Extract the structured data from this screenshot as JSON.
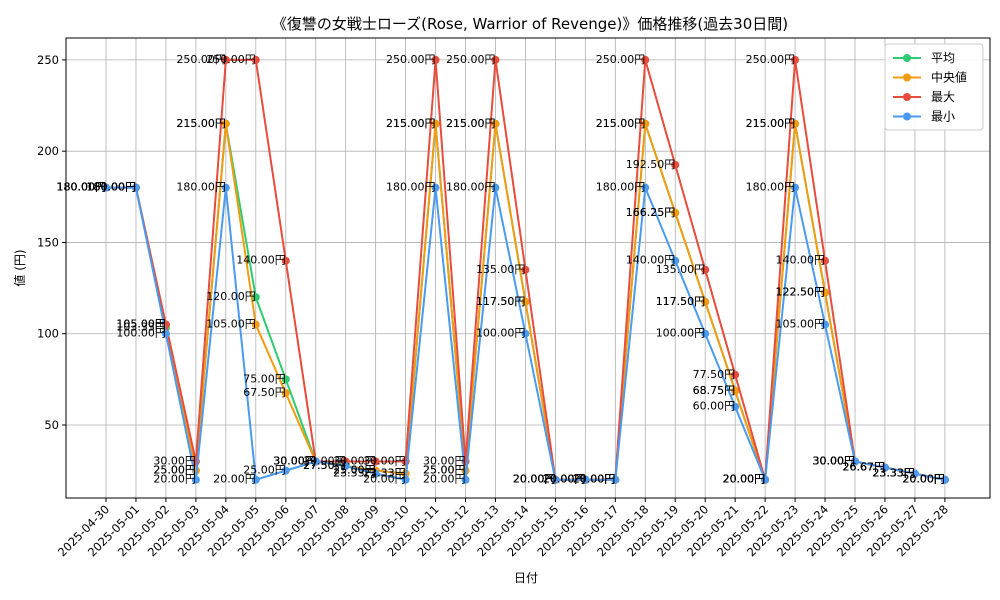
{
  "chart_data": {
    "type": "line",
    "title": "《復讐の女戦士ローズ(Rose, Warrior of Revenge)》価格推移(過去30日間)",
    "xlabel": "日付",
    "ylabel": "値 (円)",
    "ylim": [
      10,
      262
    ],
    "yticks": [
      50,
      100,
      150,
      200,
      250
    ],
    "grid": true,
    "legend_position": "top-right",
    "value_suffix": "円",
    "categories": [
      "2025-04-30",
      "2025-05-01",
      "2025-05-02",
      "2025-05-03",
      "2025-05-04",
      "2025-05-05",
      "2025-05-06",
      "2025-05-07",
      "2025-05-08",
      "2025-05-09",
      "2025-05-10",
      "2025-05-11",
      "2025-05-12",
      "2025-05-13",
      "2025-05-14",
      "2025-05-15",
      "2025-05-16",
      "2025-05-17",
      "2025-05-18",
      "2025-05-19",
      "2025-05-20",
      "2025-05-21",
      "2025-05-22",
      "2025-05-23",
      "2025-05-24",
      "2025-05-25",
      "2025-05-26",
      "2025-05-27",
      "2025-05-28"
    ],
    "series": [
      {
        "name": "平均",
        "color": "#2ecc71",
        "values": [
          180.0,
          180.0,
          103.33,
          25.0,
          215.0,
          120.0,
          75.0,
          30.0,
          27.5,
          25.0,
          23.33,
          215.0,
          25.0,
          215.0,
          117.5,
          20.0,
          20.0,
          20.0,
          215.0,
          166.25,
          117.5,
          68.75,
          20.0,
          215.0,
          122.5,
          30.0,
          26.67,
          23.33,
          20.0
        ]
      },
      {
        "name": "中央値",
        "color": "#f39c12",
        "values": [
          180.0,
          180.0,
          105.0,
          25.0,
          215.0,
          105.0,
          67.5,
          30.0,
          27.5,
          25.0,
          23.33,
          215.0,
          25.0,
          215.0,
          117.5,
          20.0,
          20.0,
          20.0,
          215.0,
          166.25,
          117.5,
          68.75,
          20.0,
          215.0,
          122.5,
          30.0,
          26.67,
          23.33,
          20.0
        ]
      },
      {
        "name": "最大",
        "color": "#e74c3c",
        "values": [
          180.0,
          180.0,
          105.0,
          30.0,
          250.0,
          250.0,
          140.0,
          30.0,
          30.0,
          30.0,
          30.0,
          250.0,
          30.0,
          250.0,
          135.0,
          20.0,
          20.0,
          20.0,
          250.0,
          192.5,
          135.0,
          77.5,
          20.0,
          250.0,
          140.0,
          30.0,
          26.67,
          23.33,
          20.0
        ]
      },
      {
        "name": "最小",
        "color": "#4a9af0",
        "values": [
          180.0,
          180.0,
          100.0,
          20.0,
          180.0,
          20.0,
          25.0,
          30.0,
          27.5,
          23.33,
          20.0,
          180.0,
          20.0,
          180.0,
          100.0,
          20.0,
          20.0,
          20.0,
          180.0,
          140.0,
          100.0,
          60.0,
          20.0,
          180.0,
          105.0,
          30.0,
          26.67,
          23.33,
          20.0
        ]
      }
    ]
  }
}
